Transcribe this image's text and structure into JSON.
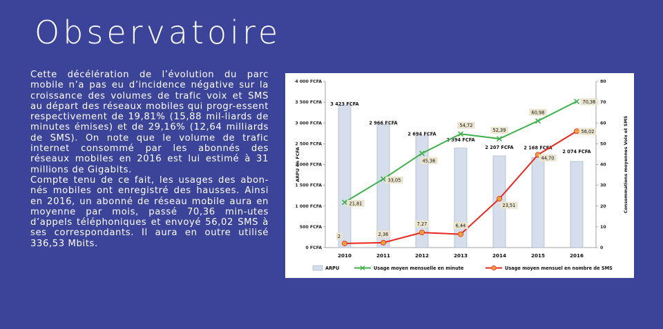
{
  "page": {
    "title": "Observatoire",
    "paragraphs": [
      "Cette décélération de l’évolution du parc mobile n’a pas eu d’incidence négative sur la croissance des volumes de trafic voix et SMS au départ des réseaux mobiles qui progr-essent respectivement de 19,81% (15,88 mil-liards de minutes émises) et de 29,16% (12,64 milliards de SMS). On note que le volume de trafic internet consommé par les abonnés des réseaux mobiles en 2016 est lui estimé à 31 millions de Gigabits.",
      "Compte tenu de ce fait, les usages des abon-nés mobiles ont enregistré des hausses. Ainsi en 2016, un abonné de réseau mobile aura en moyenne par mois, passé 70,36 min-utes d’appels téléphoniques et envoyé 56,02 SMS à ses correspondants. Il aura en outre utilisé 336,53 Mbits."
    ]
  },
  "colors": {
    "background": "#3c4499",
    "bar_fill": "#d6deec",
    "bar_stroke": "#9aa9c8",
    "minutes_line": "#3fb04a",
    "sms_line": "#e8261c",
    "sms_marker": "#f2a03c",
    "label_box": "#ebe5cf"
  },
  "chart_data": {
    "type": "bar",
    "categories": [
      "2010",
      "2011",
      "2012",
      "2013",
      "2014",
      "2015",
      "2016"
    ],
    "ylabel": "ARPU en FCFA",
    "y2label": "Consommations moyennes Voix et SMS",
    "ylim": [
      0,
      4000
    ],
    "y2lim": [
      0,
      80
    ],
    "yticks": [
      "0 FCFA",
      "500 FCFA",
      "1 000 FCFA",
      "1 500 FCFA",
      "2 000 FCFA",
      "2 500 FCFA",
      "3 000 FCFA",
      "3 500 FCFA",
      "4 000 FCFA"
    ],
    "y2ticks": [
      "0",
      "10",
      "20",
      "30",
      "40",
      "50",
      "60",
      "70",
      "80"
    ],
    "legend_position": "bottom",
    "series": [
      {
        "name": "ARPU",
        "type": "bar",
        "axis": "left",
        "values": [
          3423,
          2966,
          2694,
          2394,
          2207,
          2168,
          2074
        ],
        "labels": [
          "3 423 FCFA",
          "2 966 FCFA",
          "2 694 FCFA",
          "2 394 FCFA",
          "2 207 FCFA",
          "2 168 FCFA",
          "2 074 FCFA"
        ]
      },
      {
        "name": "Usage moyen mensuelle en minute",
        "type": "line",
        "axis": "right",
        "values": [
          21.81,
          33.05,
          45.36,
          54.72,
          52.39,
          60.98,
          70.36
        ],
        "labels": [
          "21,81",
          "33,05",
          "45,36",
          "54,72",
          "52,39",
          "60,98",
          "70,36"
        ]
      },
      {
        "name": "Usage moyen mensuel en nombre de SMS",
        "type": "line",
        "axis": "right",
        "values": [
          2,
          2.36,
          7.27,
          6.44,
          23.51,
          44.7,
          56.02
        ],
        "labels": [
          "2",
          "2,36",
          "7,27",
          "6,44",
          "23,51",
          "44,70",
          "56,02"
        ]
      }
    ]
  }
}
